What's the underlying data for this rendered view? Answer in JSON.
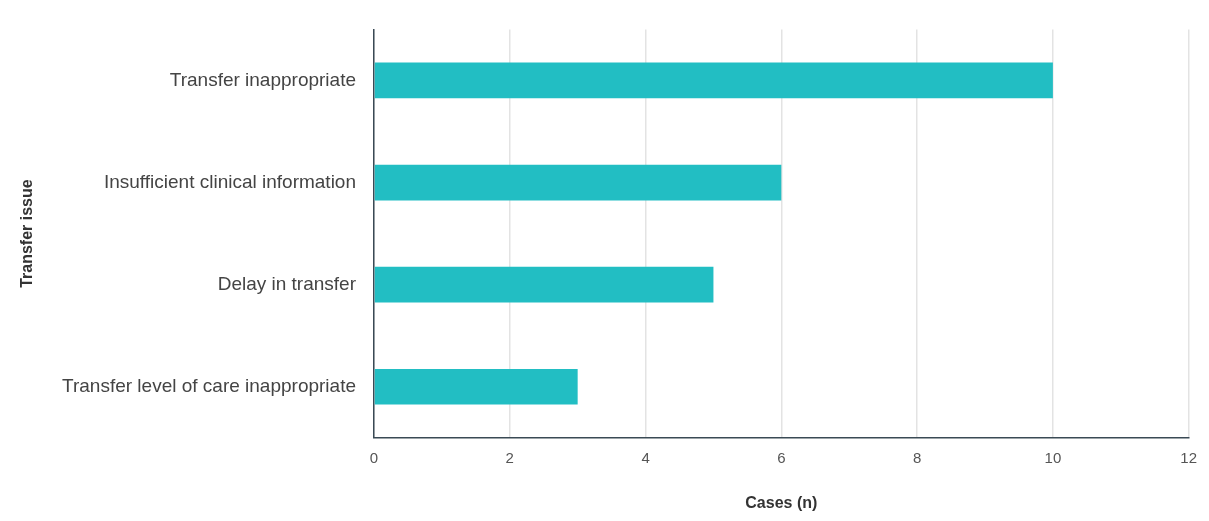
{
  "chart_data": {
    "type": "bar",
    "orientation": "horizontal",
    "xlabel": "Cases (n)",
    "ylabel": "Transfer issue",
    "categories": [
      "Transfer inappropriate",
      "Insufficient clinical information",
      "Delay in transfer",
      "Transfer level of care inappropriate"
    ],
    "values": [
      10,
      6,
      5,
      3
    ],
    "color": "#22bec3",
    "xlim": [
      0,
      12
    ],
    "xticks": [
      0,
      2,
      4,
      6,
      8,
      10,
      12
    ],
    "grid": "x"
  }
}
